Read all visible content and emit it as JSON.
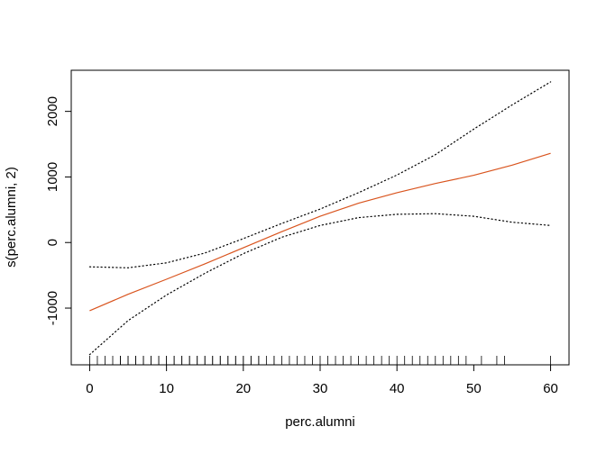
{
  "chart_data": {
    "type": "line",
    "title": "",
    "xlabel": "perc.alumni",
    "ylabel": "s(perc.alumni, 2)",
    "xlim": [
      -2.4,
      62.4
    ],
    "ylim": [
      -1865,
      2627
    ],
    "x_ticks": [
      0,
      10,
      20,
      30,
      40,
      50,
      60
    ],
    "y_ticks": [
      -1000,
      0,
      1000,
      2000
    ],
    "x_tick_labels": [
      "0",
      "10",
      "20",
      "30",
      "40",
      "50",
      "60"
    ],
    "y_tick_labels": [
      "-1000",
      "0",
      "1000",
      "2000"
    ],
    "grid": false,
    "legend": "none",
    "series": [
      {
        "role": "fit",
        "color": "#d9541e",
        "style": "solid",
        "x": [
          0,
          5,
          10,
          15,
          20,
          25,
          30,
          35,
          40,
          45,
          50,
          55,
          60
        ],
        "y": [
          -1040,
          -790,
          -560,
          -325,
          -80,
          165,
          400,
          600,
          760,
          900,
          1025,
          1180,
          1360
        ]
      },
      {
        "role": "upper-band",
        "color": "#000000",
        "style": "dotted",
        "x": [
          0,
          5,
          10,
          15,
          20,
          25,
          30,
          35,
          40,
          45,
          50,
          55,
          60
        ],
        "y": [
          -370,
          -385,
          -310,
          -160,
          60,
          290,
          510,
          760,
          1030,
          1340,
          1730,
          2100,
          2450
        ]
      },
      {
        "role": "lower-band",
        "color": "#000000",
        "style": "dotted",
        "x": [
          0,
          5,
          10,
          15,
          20,
          25,
          30,
          35,
          40,
          45,
          50,
          55,
          60
        ],
        "y": [
          -1710,
          -1190,
          -800,
          -470,
          -170,
          80,
          260,
          380,
          430,
          440,
          400,
          310,
          260
        ]
      }
    ],
    "rug": [
      0,
      1,
      2,
      3,
      4,
      4,
      5,
      5,
      6,
      6,
      7,
      7,
      8,
      8,
      9,
      9,
      10,
      10,
      11,
      11,
      12,
      12,
      13,
      13,
      14,
      14,
      15,
      15,
      16,
      16,
      17,
      17,
      18,
      18,
      19,
      19,
      20,
      20,
      21,
      21,
      22,
      22,
      23,
      24,
      24,
      25,
      26,
      27,
      28,
      29,
      30,
      31,
      32,
      33,
      34,
      35,
      36,
      37,
      38,
      39,
      40,
      41,
      42,
      43,
      44,
      45,
      46,
      47,
      48,
      49,
      51,
      53,
      54,
      60
    ]
  }
}
